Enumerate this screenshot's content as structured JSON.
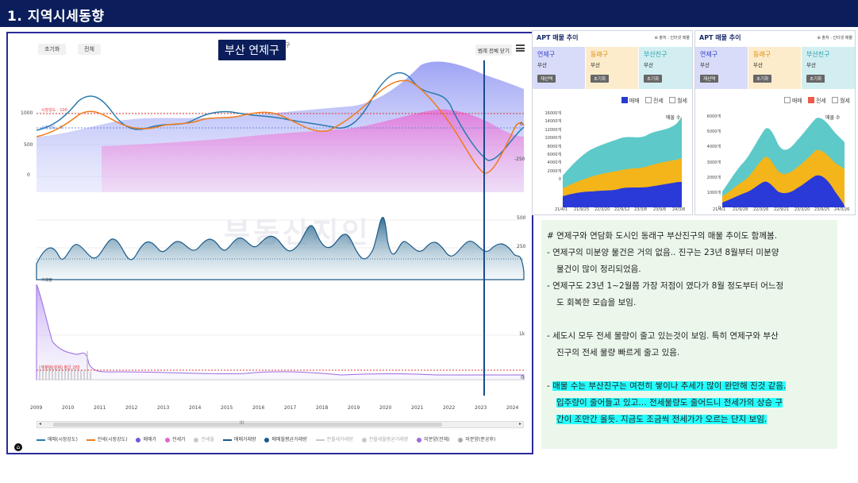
{
  "header": {
    "title": "1. 지역시세동향"
  },
  "left_chart": {
    "chips": [
      "초기화",
      "전체"
    ],
    "region_badge": "부산 연제구",
    "region_tail": "구",
    "menu_label": "범례 전체 닫기",
    "watermark": "부동산지인",
    "left_axis": [
      "1000",
      "500",
      "0"
    ],
    "annot_left": [
      "시장강도 : 100",
      "시장강도 : 0"
    ],
    "right_axis_top": [
      "0",
      "-250"
    ],
    "right_axis_mid": [
      "500",
      "250"
    ],
    "right_axis_bot": [
      "1k",
      "0"
    ],
    "series_label_mid": "거래량",
    "avg_label": "미분양(전체) 평균 265",
    "years": [
      "2009",
      "2010",
      "2011",
      "2012",
      "2013",
      "2014",
      "2015",
      "2016",
      "2017",
      "2018",
      "2019",
      "2020",
      "2021",
      "2022",
      "2023",
      "2024"
    ],
    "scroll_grip": "III",
    "legend": [
      {
        "label": "매매(시장강도)",
        "color": "#2a7ab0",
        "kind": "line"
      },
      {
        "label": "전세(시장강도)",
        "color": "#f07b1a",
        "kind": "line"
      },
      {
        "label": "매매가",
        "color": "#6a5ae0",
        "kind": "dot"
      },
      {
        "label": "전세가",
        "color": "#e066d0",
        "kind": "dot"
      },
      {
        "label": "전세율",
        "color": "#c8c8c8",
        "kind": "dot"
      },
      {
        "label": "매매거래량",
        "color": "#1a5a8a",
        "kind": "line"
      },
      {
        "label": "매매월평균거래량",
        "color": "#1a5a8a",
        "kind": "dot"
      },
      {
        "label": "전월세거래량",
        "color": "#c8c8c8",
        "kind": "line"
      },
      {
        "label": "전월세월평균거래량",
        "color": "#c8c8c8",
        "kind": "dot"
      },
      {
        "label": "미분양(전체)",
        "color": "#9a6ae0",
        "kind": "dot"
      },
      {
        "label": "미분양(준공후)",
        "color": "#aaaaaa",
        "kind": "dot"
      }
    ]
  },
  "card1": {
    "title": "APT 매물 추이",
    "source": "⊕ 출처 : 인터넷 매물",
    "cells": [
      {
        "name": "연제구",
        "sub": "부산",
        "badge": "재선택",
        "bg": "#d9dcf8",
        "color": "#2a3ad0"
      },
      {
        "name": "동래구",
        "sub": "부산",
        "badge": "초기화",
        "bg": "#fdeccb",
        "color": "#e08a00"
      },
      {
        "name": "부산진구",
        "sub": "부산",
        "badge": "초기화",
        "bg": "#d2eef0",
        "color": "#1a9aa8"
      }
    ],
    "legend": {
      "a": "매매",
      "b": "전세",
      "c": "월세"
    },
    "series_note": "매물 수",
    "y_ticks": [
      "16000개",
      "14000개",
      "12000개",
      "10000개",
      "8000개",
      "6000개",
      "4000개",
      "2000개",
      "0"
    ],
    "x_ticks": [
      "21/4/1",
      "21/9/25",
      "22/3/20",
      "22/9/12",
      "23/3/8",
      "23/9/8",
      "24/3/8"
    ]
  },
  "card2": {
    "title": "APT 매물 추이",
    "source": "⊕ 출처 : 인터넷 매물",
    "cells": [
      {
        "name": "연제구",
        "sub": "부산",
        "badge": "재선택",
        "bg": "#d9dcf8",
        "color": "#2a3ad0"
      },
      {
        "name": "동래구",
        "sub": "부산",
        "badge": "초기화",
        "bg": "#fdeccb",
        "color": "#e08a00"
      },
      {
        "name": "부산진구",
        "sub": "부산",
        "badge": "초기화",
        "bg": "#d2eef0",
        "color": "#1a9aa8"
      }
    ],
    "legend": {
      "a": "매매",
      "b": "전세",
      "c": "월세"
    },
    "series_note": "매물 수",
    "y_ticks": [
      "6000개",
      "5000개",
      "4000개",
      "3000개",
      "2000개",
      "1000개",
      "0"
    ],
    "x_ticks": [
      "21/4/1",
      "21/9/28",
      "22/3/26",
      "22/9/21",
      "23/3/20",
      "23/9/25",
      "24/3/26"
    ]
  },
  "notes": {
    "l1": "# 연제구와 연담화 도시인 동래구 부산진구의 매물 추이도 함께봄.",
    "l2": "- 연제구의 미분양 물건은 거의 없음.. 진구는 23년 8월부터 미분양",
    "l3": "물건이 많이 정리되었음.",
    "l4": "- 연제구도 23년 1~2월쯤 가장 저점이 였다가 8월 정도부터 어느정",
    "l5": "도 회복한 모습을 보임.",
    "l6": "- 세도시 모두 전세 물량이 줄고 있는것이 보임. 특히 연제구와 부산",
    "l7": "진구의 전세 물량 빠르게 줄고 있음.",
    "l8a": "- ",
    "l8b": "매물 수는 부산진구는 여전히 쌓이나 추세가 많이 완만해 진것 같음.",
    "l9": "입주량이 줄어들고 있고… 전세물량도 줄어드니 전세가의 상승 구",
    "l10": "간이 조만간 올듯. 지금도 조금씩 전세가가 오르는 단지 보임."
  }
}
